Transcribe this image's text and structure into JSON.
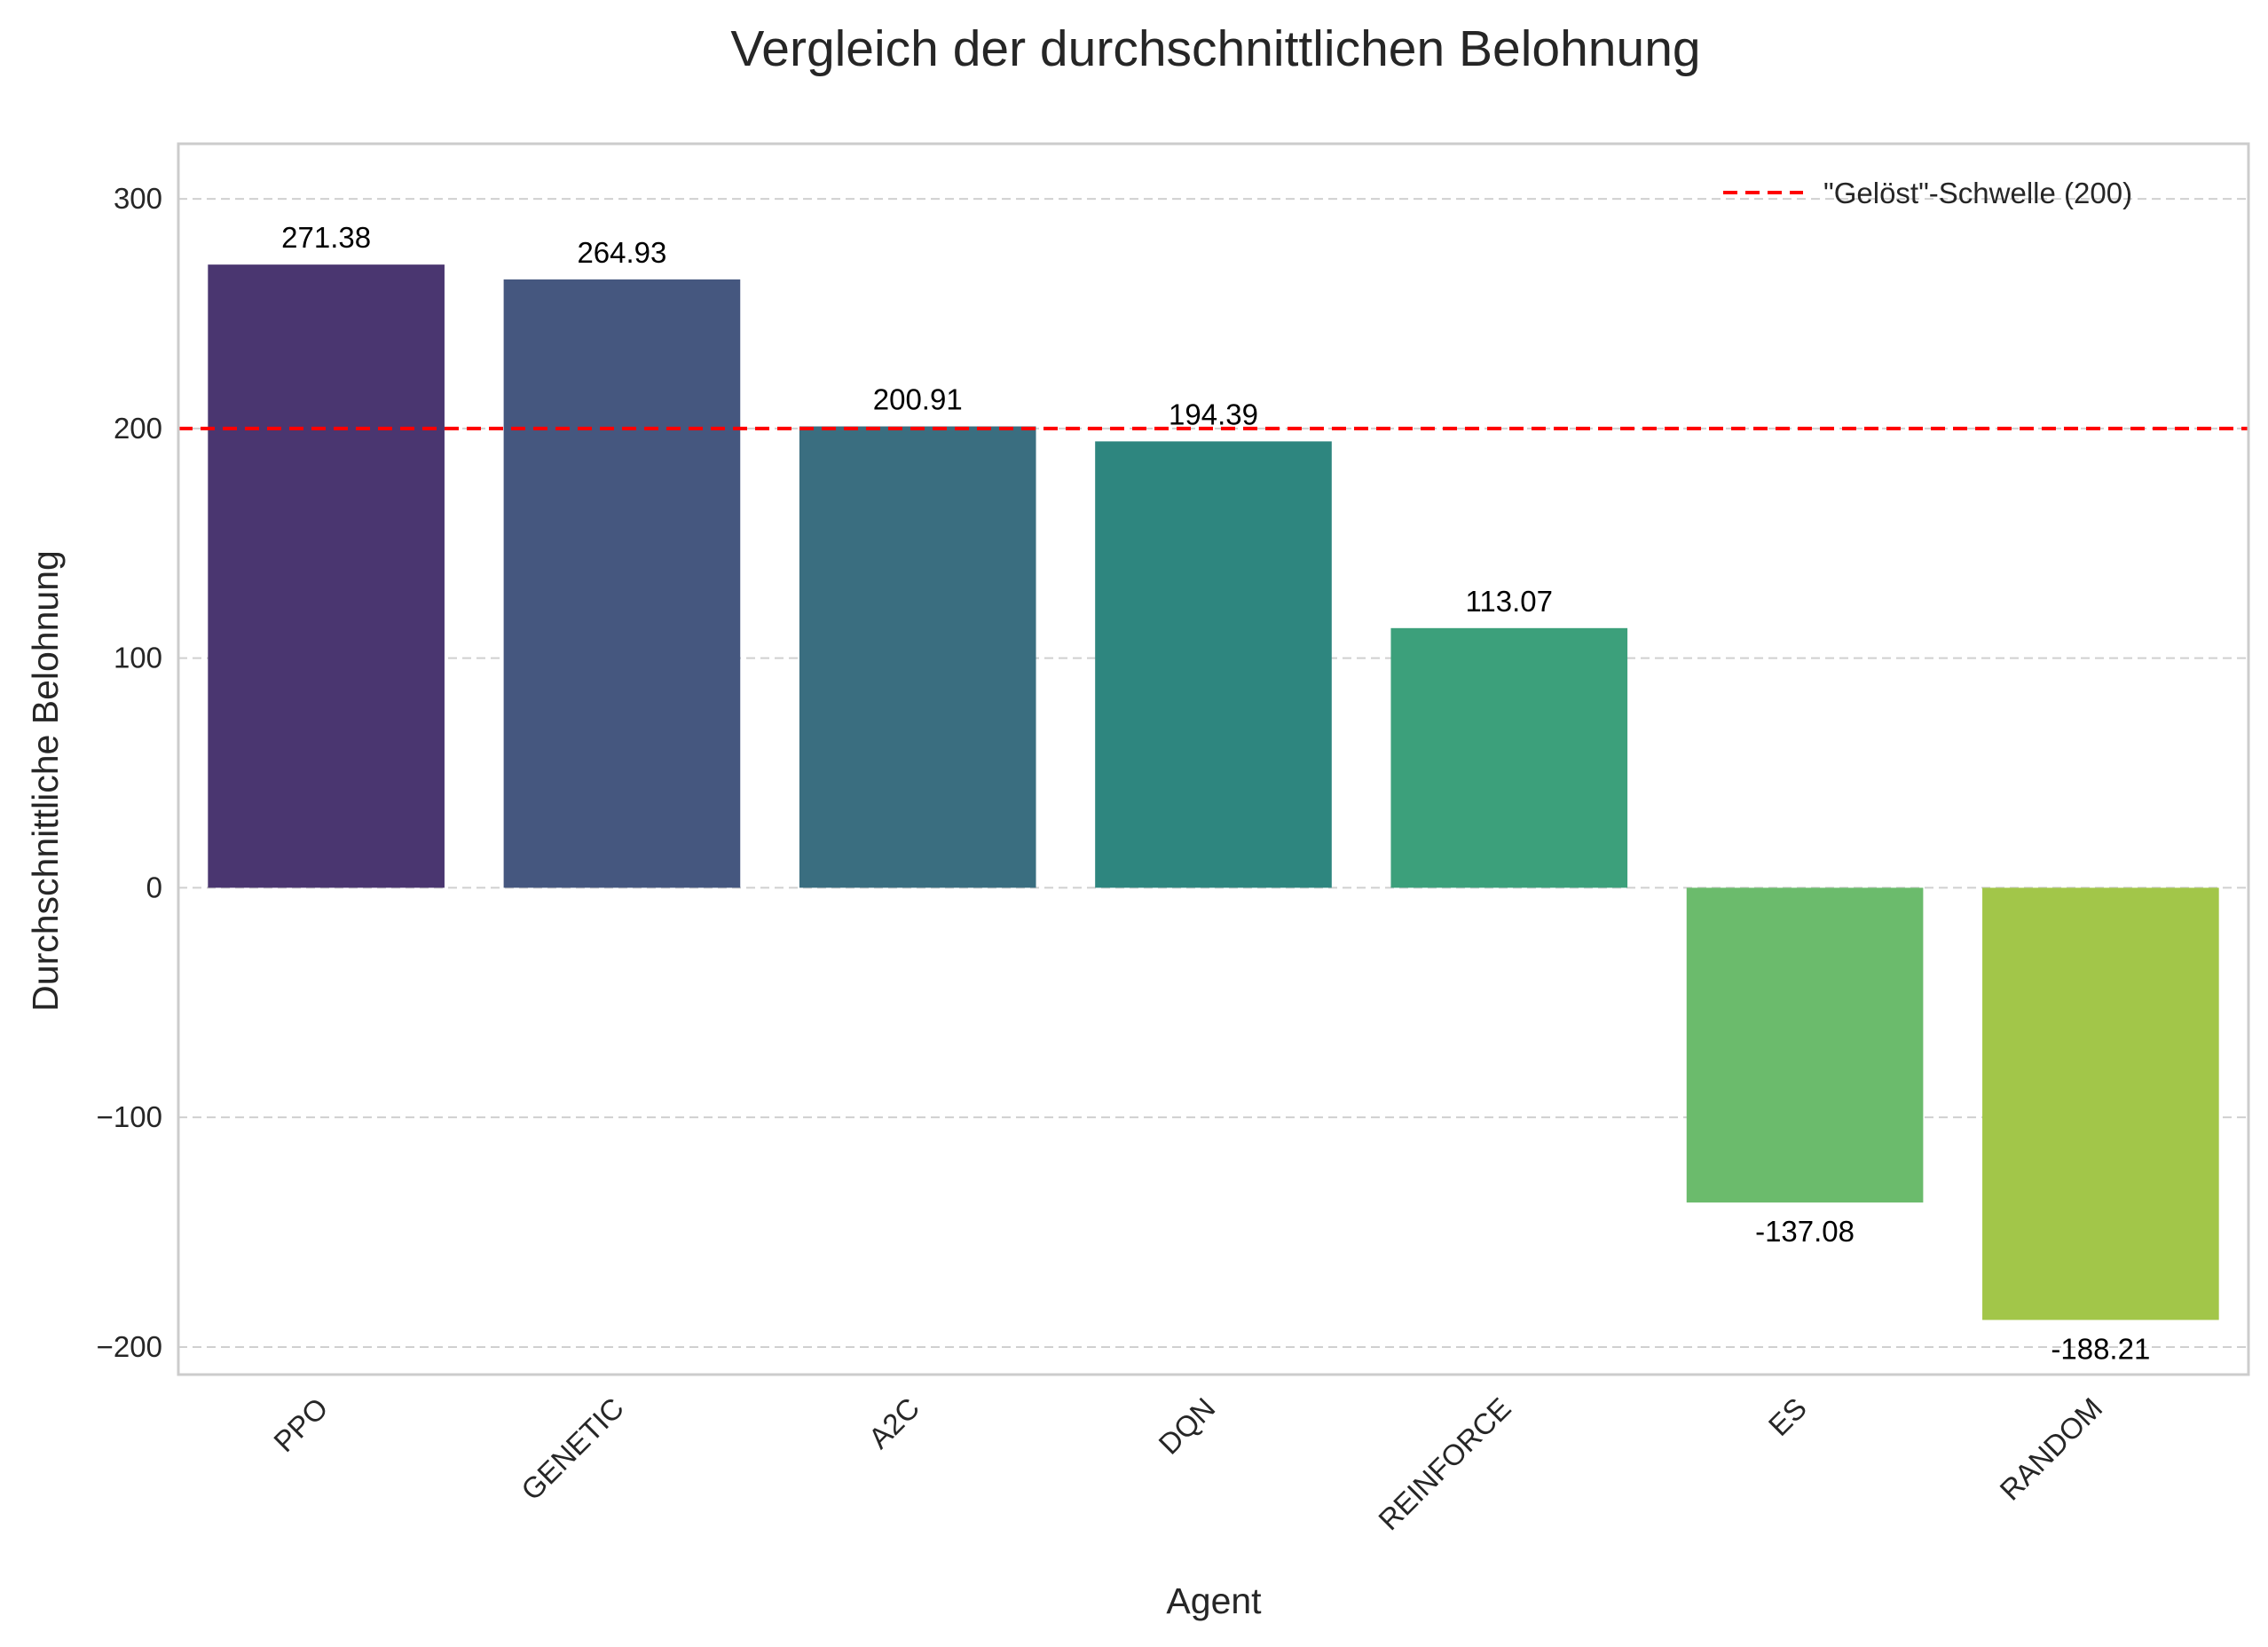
{
  "chart_data": {
    "type": "bar",
    "title": "Vergleich der durchschnittlichen Belohnung",
    "xlabel": "Agent",
    "ylabel": "Durchschnittliche Belohnung",
    "categories": [
      "PPO",
      "GENETIC",
      "A2C",
      "DQN",
      "REINFORCE",
      "ES",
      "RANDOM"
    ],
    "values": [
      271.38,
      264.93,
      200.91,
      194.39,
      113.07,
      -137.08,
      -188.21
    ],
    "data_labels": [
      "271.38",
      "264.93",
      "200.91",
      "194.39",
      "113.07",
      "-137.08",
      "-188.21"
    ],
    "colors": [
      "#4a3670",
      "#45577f",
      "#3a6e80",
      "#2e867f",
      "#3ca07b",
      "#6bbb6c",
      "#a2c649"
    ],
    "ylim": [
      -212,
      324
    ],
    "yticks": [
      300,
      200,
      100,
      0,
      -100,
      -200
    ],
    "ytick_labels": [
      "300",
      "200",
      "100",
      "0",
      "−100",
      "−200"
    ],
    "grid": true,
    "threshold": {
      "value": 200,
      "color": "#ff0000",
      "style": "dashed",
      "label": "\"Gelöst\"-Schwelle (200)"
    },
    "legend_position": "top-right"
  }
}
